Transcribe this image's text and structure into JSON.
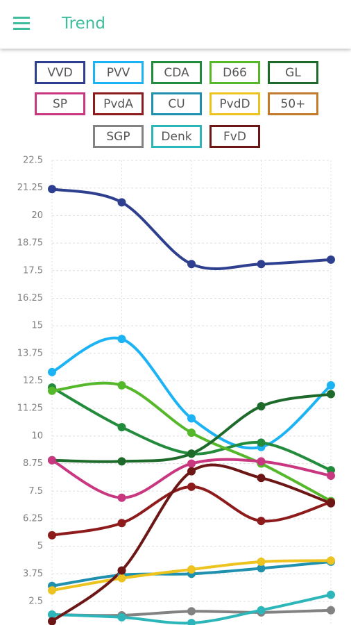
{
  "header": {
    "title": "Trend"
  },
  "chart_data": {
    "type": "line",
    "categories": [
      null,
      null,
      null,
      null,
      null
    ],
    "ylim": [
      1.5,
      22.5
    ],
    "yticks": [
      2.5,
      3.75,
      5,
      6.25,
      7.5,
      8.75,
      10,
      11.25,
      12.5,
      13.75,
      15,
      16.25,
      17.5,
      18.75,
      20,
      21.25,
      22.5
    ],
    "grid": true,
    "series": [
      {
        "name": "VVD",
        "color": "#2e3f8f",
        "values": [
          21.2,
          20.6,
          17.8,
          17.8,
          18.0
        ]
      },
      {
        "name": "PVV",
        "color": "#1cb3f5",
        "values": [
          12.9,
          14.4,
          10.8,
          9.5,
          12.3
        ]
      },
      {
        "name": "CDA",
        "color": "#238c3c",
        "values": [
          12.2,
          10.4,
          9.2,
          9.7,
          8.45
        ]
      },
      {
        "name": "D66",
        "color": "#55b82a",
        "values": [
          12.05,
          12.3,
          10.15,
          8.75,
          7.05
        ]
      },
      {
        "name": "GL",
        "color": "#1d6a2b",
        "values": [
          8.9,
          8.85,
          9.2,
          11.35,
          11.9
        ]
      },
      {
        "name": "SP",
        "color": "#c8377f",
        "values": [
          8.9,
          7.2,
          8.75,
          8.85,
          8.2
        ]
      },
      {
        "name": "PvdA",
        "color": "#8e1b1b",
        "values": [
          5.5,
          6.05,
          7.7,
          6.15,
          7.0
        ]
      },
      {
        "name": "CU",
        "color": "#1f90ae",
        "values": [
          3.2,
          3.7,
          3.75,
          4.0,
          4.3
        ]
      },
      {
        "name": "PvdD",
        "color": "#ecc31f",
        "values": [
          3.0,
          3.55,
          3.95,
          4.3,
          4.35
        ]
      },
      {
        "name": "50+",
        "color": "#c27a2c",
        "values": [
          null,
          null,
          null,
          null,
          null
        ]
      },
      {
        "name": "SGP",
        "color": "#828282",
        "values": [
          1.9,
          1.87,
          2.05,
          2.0,
          2.1
        ]
      },
      {
        "name": "Denk",
        "color": "#2cb6b9",
        "values": [
          1.9,
          1.78,
          1.52,
          2.1,
          2.8
        ]
      },
      {
        "name": "FvD",
        "color": "#6d1616",
        "values": [
          1.6,
          3.9,
          8.4,
          8.1,
          6.95
        ]
      }
    ]
  }
}
